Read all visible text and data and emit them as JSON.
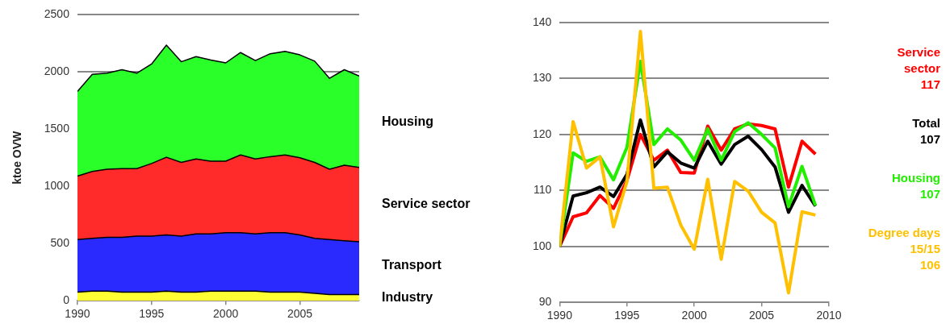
{
  "chart_data": [
    {
      "type": "area",
      "stacked": true,
      "ylabel": "ktoe OVW",
      "x": [
        1990,
        1991,
        1992,
        1993,
        1994,
        1995,
        1996,
        1997,
        1998,
        1999,
        2000,
        2001,
        2002,
        2003,
        2004,
        2005,
        2006,
        2007,
        2008,
        2009
      ],
      "xlim": [
        1990,
        2009
      ],
      "xticks": [
        1990,
        1995,
        2000,
        2005
      ],
      "ylim": [
        0,
        2500
      ],
      "yticks": [
        0,
        500,
        1000,
        1500,
        2000,
        2500
      ],
      "grid": "y",
      "series": [
        {
          "name": "Industry",
          "color": "#ffff33",
          "values": [
            75,
            85,
            85,
            75,
            75,
            75,
            85,
            75,
            75,
            85,
            85,
            85,
            85,
            75,
            75,
            75,
            65,
            55,
            55,
            55
          ]
        },
        {
          "name": "Transport",
          "color": "#2a2aff",
          "values": [
            460,
            460,
            470,
            480,
            490,
            490,
            490,
            490,
            510,
            500,
            510,
            510,
            500,
            520,
            520,
            500,
            480,
            480,
            470,
            460
          ]
        },
        {
          "name": "Service sector",
          "color": "#ff2a2a",
          "values": [
            555,
            585,
            595,
            600,
            590,
            635,
            680,
            645,
            655,
            635,
            625,
            680,
            655,
            665,
            680,
            675,
            665,
            615,
            660,
            650
          ]
        },
        {
          "name": "Housing",
          "color": "#2aff2a",
          "values": [
            740,
            850,
            840,
            865,
            835,
            870,
            980,
            880,
            895,
            885,
            860,
            895,
            860,
            900,
            905,
            900,
            885,
            795,
            835,
            800
          ]
        }
      ]
    },
    {
      "type": "line",
      "annotations": [
        "117",
        "107",
        "107",
        "106"
      ],
      "x": [
        1990,
        1991,
        1992,
        1993,
        1994,
        1995,
        1996,
        1997,
        1998,
        1999,
        2000,
        2001,
        2002,
        2003,
        2004,
        2005,
        2006,
        2007,
        2008,
        2009
      ],
      "xlim": [
        1990,
        2010
      ],
      "xticks": [
        1990,
        1995,
        2000,
        2005,
        2010
      ],
      "ylim": [
        90,
        140
      ],
      "yticks": [
        90,
        100,
        110,
        120,
        130,
        140
      ],
      "grid": "y",
      "series": [
        {
          "name": "Service sector",
          "color": "#ff0000",
          "values": [
            100,
            105.3,
            106,
            109.1,
            106.8,
            111.8,
            120,
            115.4,
            117.2,
            113.2,
            113.1,
            121.5,
            117.2,
            121,
            121.9,
            121.6,
            121,
            110.6,
            118.8,
            116.5
          ]
        },
        {
          "name": "Total",
          "color": "#000000",
          "values": [
            100,
            109,
            109.6,
            110.6,
            108.9,
            112.9,
            122.6,
            114.2,
            116.9,
            114.9,
            114,
            118.8,
            114.7,
            118.2,
            119.7,
            117.3,
            114.2,
            106.1,
            110.9,
            107.2
          ]
        },
        {
          "name": "Housing",
          "color": "#22ee00",
          "values": [
            100,
            116.7,
            115.2,
            116,
            111.9,
            117.7,
            133.1,
            118.2,
            121,
            119,
            115.4,
            121,
            115.4,
            120.5,
            122.1,
            120,
            117.6,
            107.1,
            114.3,
            107.3
          ]
        },
        {
          "name": "Degree days 15/15",
          "color": "#ffc000",
          "values": [
            100,
            122.3,
            114,
            116,
            103.5,
            111.6,
            138.4,
            110.4,
            110.6,
            103.8,
            99.5,
            112,
            97.7,
            111.6,
            109.9,
            106.1,
            104.2,
            91.7,
            106.2,
            105.6
          ]
        }
      ]
    }
  ]
}
